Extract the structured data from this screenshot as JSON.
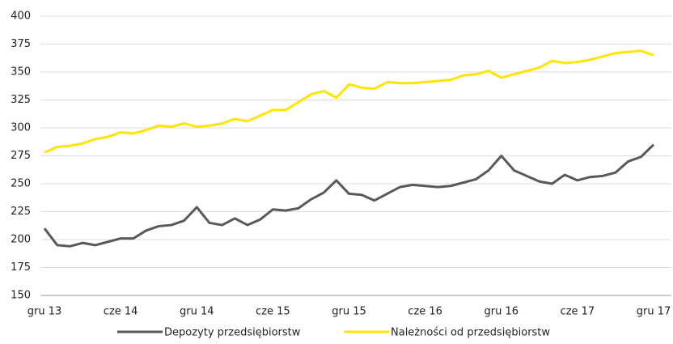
{
  "chart_data": {
    "type": "line",
    "categories": [
      "gru 13",
      null,
      null,
      null,
      null,
      null,
      "cze 14",
      null,
      null,
      null,
      null,
      null,
      "gru 14",
      null,
      null,
      null,
      null,
      null,
      "cze 15",
      null,
      null,
      null,
      null,
      null,
      "gru 15",
      null,
      null,
      null,
      null,
      null,
      "cze 16",
      null,
      null,
      null,
      null,
      null,
      "gru 16",
      null,
      null,
      null,
      null,
      null,
      "cze 17",
      null,
      null,
      null,
      null,
      null,
      "gru 17"
    ],
    "series": [
      {
        "name": "Depozyty przedsiębiorstw",
        "color": "#595959",
        "values": [
          210,
          195,
          194,
          197,
          195,
          198,
          201,
          201,
          208,
          212,
          213,
          217,
          229,
          215,
          213,
          219,
          213,
          218,
          227,
          226,
          228,
          236,
          242,
          253,
          241,
          240,
          235,
          241,
          247,
          249,
          248,
          247,
          248,
          251,
          254,
          262,
          275,
          262,
          257,
          252,
          250,
          258,
          253,
          256,
          257,
          260,
          270,
          274,
          285
        ]
      },
      {
        "name": "Należności od przedsiębiorstw",
        "color": "#ffe600",
        "values": [
          278,
          283,
          284,
          286,
          290,
          292,
          296,
          295,
          298,
          302,
          301,
          304,
          301,
          302,
          304,
          308,
          306,
          311,
          316,
          316,
          323,
          330,
          333,
          327,
          339,
          336,
          335,
          341,
          340,
          340,
          341,
          342,
          343,
          347,
          348,
          351,
          345,
          348,
          351,
          354,
          360,
          358,
          359,
          361,
          364,
          367,
          368,
          369,
          365
        ]
      }
    ],
    "ylim": [
      150,
      400
    ],
    "yticks": [
      150,
      175,
      200,
      225,
      250,
      275,
      300,
      325,
      350,
      375,
      400
    ],
    "grid": true
  }
}
